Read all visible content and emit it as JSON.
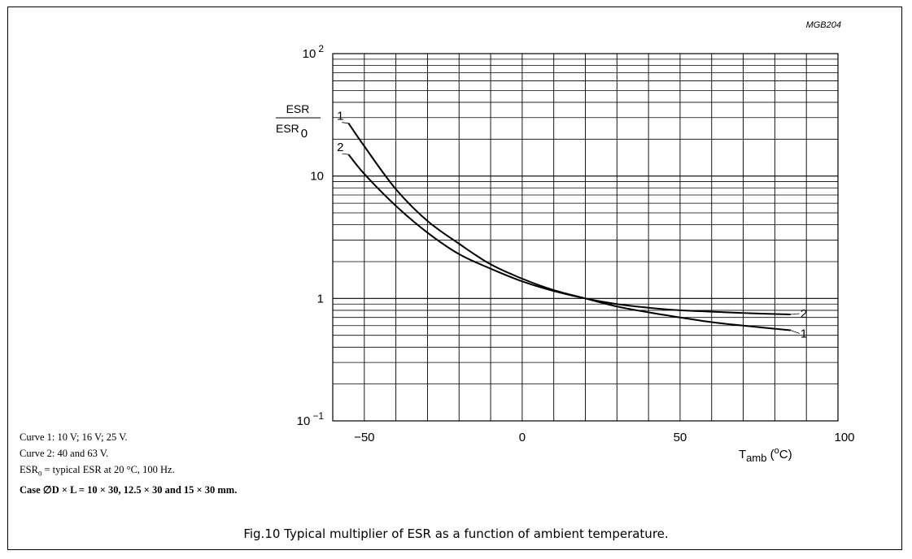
{
  "chart_data": {
    "type": "line",
    "code": "MGB204",
    "xlim": [
      -60,
      100
    ],
    "ylim": [
      0.1,
      100
    ],
    "yscale": "log",
    "grid": true,
    "x_ticks": [
      -50,
      0,
      50,
      100
    ],
    "x_tick_labels": [
      "−50",
      "0",
      "50",
      "100"
    ],
    "y_ticks": [
      {
        "value": 100,
        "base": "10",
        "exp": "2"
      },
      {
        "value": 10,
        "base": "10",
        "exp": ""
      },
      {
        "value": 1,
        "base": "1",
        "exp": ""
      },
      {
        "value": 0.1,
        "base": "10",
        "exp": "−1"
      }
    ],
    "ylabel": {
      "numerator": "ESR",
      "denominator": "ESR",
      "denominator_sub": "0"
    },
    "xlabel": {
      "main": "T",
      "sub": "amb",
      "unit_open": " (",
      "unit_deg": "o",
      "unit_close": "C)"
    },
    "series": [
      {
        "label": "1",
        "x": [
          -55,
          -50,
          -40,
          -30,
          -20,
          -10,
          0,
          10,
          20,
          30,
          40,
          50,
          60,
          70,
          85
        ],
        "y": [
          27,
          17.5,
          7.8,
          4.3,
          2.8,
          1.9,
          1.45,
          1.17,
          1.0,
          0.86,
          0.77,
          0.7,
          0.64,
          0.6,
          0.55
        ]
      },
      {
        "label": "2",
        "x": [
          -55,
          -50,
          -40,
          -30,
          -20,
          -10,
          0,
          10,
          20,
          30,
          40,
          50,
          60,
          70,
          85
        ],
        "y": [
          15,
          10.4,
          5.7,
          3.45,
          2.3,
          1.75,
          1.38,
          1.15,
          1.0,
          0.9,
          0.84,
          0.8,
          0.78,
          0.76,
          0.74
        ]
      }
    ]
  },
  "notes": {
    "curve1": "Curve 1: 10 V; 16 V; 25 V.",
    "curve2": "Curve 2: 40 and 63 V.",
    "esr0_main": "ESR",
    "esr0_sub": "0",
    "esr0_rest": " = typical ESR at 20 °C, 100 Hz.",
    "case": "Case ∅D × L = 10 × 30, 12.5 × 30 and 15 × 30 mm."
  },
  "caption": "Fig.10  Typical multiplier of ESR as a function of ambient temperature."
}
